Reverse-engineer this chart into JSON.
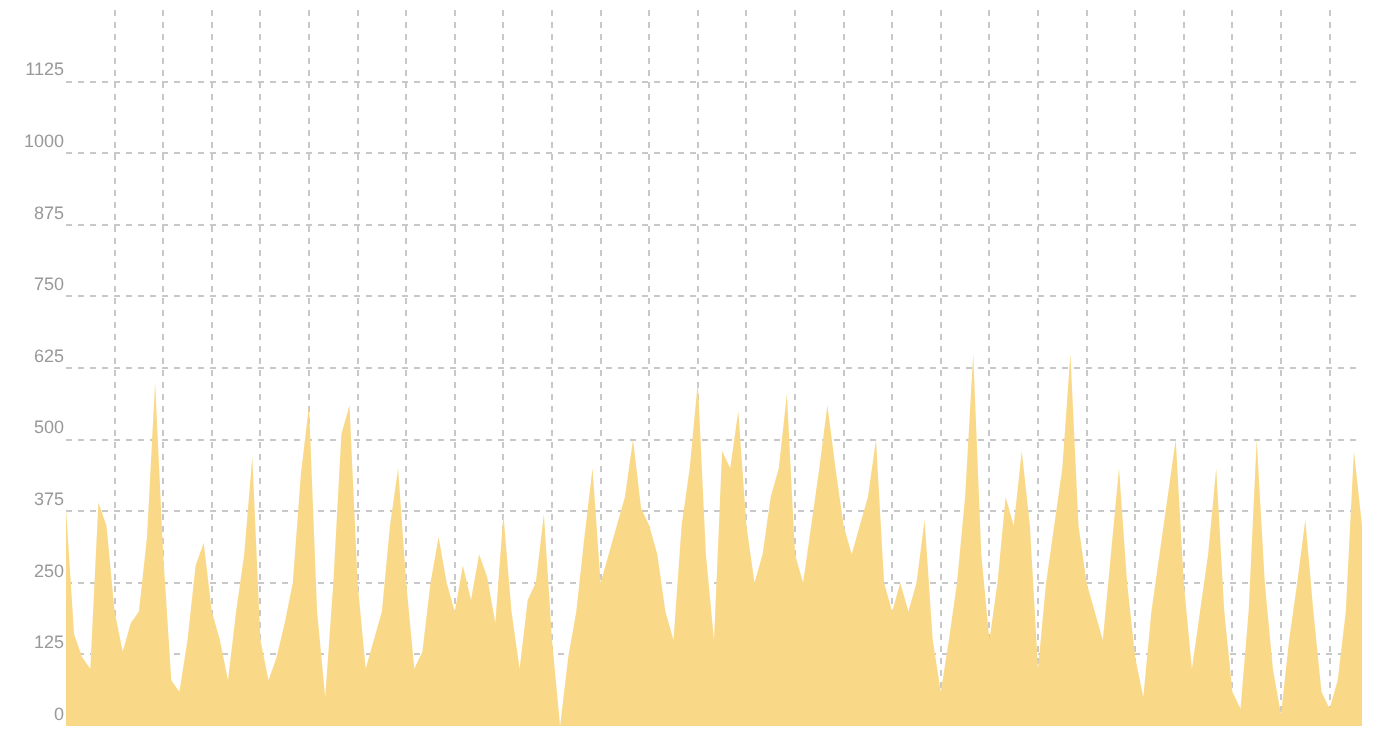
{
  "chart_data": {
    "type": "area",
    "categories": [
      null,
      null,
      null,
      null,
      null,
      null,
      null,
      null,
      null,
      null,
      null,
      null,
      null,
      null,
      null,
      null,
      null,
      null,
      null,
      null,
      null,
      null,
      null,
      null,
      null,
      null,
      null,
      null,
      null,
      null,
      null,
      null,
      null,
      null,
      null,
      null,
      null,
      null,
      null,
      null,
      null,
      null,
      null,
      null,
      null,
      null,
      null,
      null,
      null,
      null,
      null,
      null,
      null,
      null,
      null,
      null,
      null,
      null,
      null,
      null,
      null,
      null,
      null,
      null,
      null,
      null,
      null,
      null,
      null,
      null,
      null,
      null,
      null,
      null,
      null,
      null,
      null,
      null,
      null,
      null,
      null,
      null,
      null,
      null,
      null,
      null,
      null,
      null,
      null,
      null,
      null,
      null,
      null,
      null,
      null,
      null,
      null,
      null,
      null,
      null,
      null,
      null,
      null,
      null,
      null,
      null,
      null,
      null,
      null,
      null,
      null,
      null,
      null,
      null,
      null,
      null,
      null,
      null,
      null,
      null,
      null,
      null,
      null,
      null,
      null,
      null,
      null,
      null,
      null,
      null,
      null,
      null,
      null,
      null,
      null,
      null,
      null,
      null,
      null,
      null,
      null,
      null,
      null,
      null,
      null,
      null,
      null,
      null,
      null,
      null,
      null,
      null,
      null,
      null,
      null,
      null,
      null,
      null,
      null,
      null,
      null
    ],
    "series": [
      {
        "color": "#f9d888",
        "values": [
          380,
          160,
          120,
          100,
          390,
          350,
          200,
          130,
          180,
          200,
          330,
          600,
          300,
          80,
          60,
          150,
          280,
          320,
          200,
          150,
          80,
          200,
          300,
          470,
          150,
          80,
          120,
          180,
          250,
          440,
          560,
          200,
          50,
          250,
          510,
          560,
          250,
          100,
          150,
          200,
          350,
          450,
          250,
          100,
          130,
          250,
          330,
          250,
          200,
          280,
          220,
          300,
          260,
          180,
          370,
          200,
          100,
          220,
          250,
          370,
          150,
          0,
          120,
          200,
          330,
          450,
          250,
          300,
          350,
          400,
          500,
          380,
          350,
          300,
          200,
          150,
          350,
          450,
          600,
          300,
          150,
          480,
          450,
          550,
          350,
          250,
          300,
          400,
          450,
          580,
          300,
          250,
          350,
          450,
          560,
          450,
          350,
          300,
          350,
          400,
          500,
          250,
          200,
          250,
          200,
          250,
          360,
          150,
          60,
          150,
          250,
          400,
          650,
          300,
          150,
          250,
          400,
          350,
          480,
          350,
          100,
          250,
          350,
          450,
          650,
          350,
          250,
          200,
          150,
          300,
          450,
          250,
          120,
          50,
          200,
          300,
          400,
          500,
          250,
          100,
          200,
          300,
          450,
          200,
          60,
          30,
          200,
          500,
          250,
          100,
          20,
          150,
          250,
          360,
          200,
          60,
          30,
          80,
          200,
          480,
          350
        ]
      }
    ],
    "ylim": [
      0,
      1250
    ],
    "yticks": [
      0,
      125,
      250,
      375,
      500,
      625,
      750,
      875,
      1000,
      1125
    ],
    "grid": true,
    "legend": false
  }
}
